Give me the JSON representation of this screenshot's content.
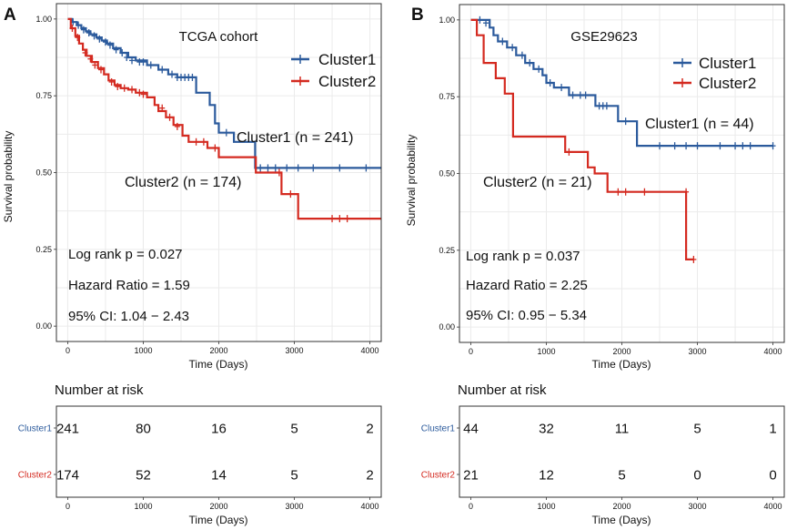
{
  "chart_data": [
    {
      "panel_label": "A",
      "type": "line",
      "subtype": "kaplan-meier",
      "title": "TCGA cohort",
      "xlabel": "Time (Days)",
      "ylabel": "Survival probability",
      "xlim": [
        -150,
        4150
      ],
      "ylim": [
        -0.05,
        1.05
      ],
      "x_ticks": [
        "0",
        "1000",
        "2000",
        "3000",
        "4000"
      ],
      "x_tick_values": [
        0,
        1000,
        2000,
        3000,
        4000
      ],
      "y_ticks": [
        "0.00",
        "0.25",
        "0.50",
        "0.75",
        "1.00"
      ],
      "y_tick_values": [
        0,
        0.25,
        0.5,
        0.75,
        1.0
      ],
      "legend": [
        "Cluster1",
        "Cluster2"
      ],
      "legend_position": "top-right",
      "series": [
        {
          "name": "Cluster1",
          "color": "#2b5a9c",
          "label": "Cluster1 (n = 241)",
          "steps": [
            [
              0,
              1.0
            ],
            [
              60,
              0.99
            ],
            [
              120,
              0.98
            ],
            [
              180,
              0.97
            ],
            [
              240,
              0.96
            ],
            [
              300,
              0.95
            ],
            [
              380,
              0.94
            ],
            [
              450,
              0.93
            ],
            [
              520,
              0.92
            ],
            [
              600,
              0.905
            ],
            [
              700,
              0.89
            ],
            [
              800,
              0.875
            ],
            [
              900,
              0.865
            ],
            [
              1050,
              0.85
            ],
            [
              1200,
              0.835
            ],
            [
              1330,
              0.82
            ],
            [
              1450,
              0.81
            ],
            [
              1700,
              0.76
            ],
            [
              1880,
              0.72
            ],
            [
              1950,
              0.66
            ],
            [
              2000,
              0.63
            ],
            [
              2200,
              0.6
            ],
            [
              2480,
              0.515
            ],
            [
              4150,
              0.515
            ]
          ],
          "censors": [
            [
              70,
              0.99
            ],
            [
              140,
              0.98
            ],
            [
              210,
              0.965
            ],
            [
              280,
              0.955
            ],
            [
              350,
              0.945
            ],
            [
              420,
              0.935
            ],
            [
              500,
              0.925
            ],
            [
              560,
              0.915
            ],
            [
              640,
              0.9
            ],
            [
              720,
              0.89
            ],
            [
              780,
              0.875
            ],
            [
              850,
              0.865
            ],
            [
              950,
              0.86
            ],
            [
              1000,
              0.86
            ],
            [
              1100,
              0.85
            ],
            [
              1250,
              0.835
            ],
            [
              1380,
              0.82
            ],
            [
              1450,
              0.81
            ],
            [
              1500,
              0.81
            ],
            [
              1550,
              0.81
            ],
            [
              1600,
              0.81
            ],
            [
              1650,
              0.81
            ],
            [
              2100,
              0.63
            ],
            [
              2550,
              0.515
            ],
            [
              2650,
              0.515
            ],
            [
              2750,
              0.515
            ],
            [
              2900,
              0.515
            ],
            [
              3050,
              0.515
            ],
            [
              3250,
              0.515
            ],
            [
              3600,
              0.515
            ],
            [
              3950,
              0.515
            ]
          ],
          "at_risk": [
            "241",
            "80",
            "16",
            "5",
            "2"
          ]
        },
        {
          "name": "Cluster2",
          "color": "#d42a20",
          "label": "Cluster2 (n = 174)",
          "steps": [
            [
              0,
              1.0
            ],
            [
              40,
              0.97
            ],
            [
              100,
              0.945
            ],
            [
              150,
              0.92
            ],
            [
              200,
              0.9
            ],
            [
              250,
              0.88
            ],
            [
              320,
              0.86
            ],
            [
              400,
              0.84
            ],
            [
              480,
              0.82
            ],
            [
              540,
              0.8
            ],
            [
              620,
              0.785
            ],
            [
              700,
              0.775
            ],
            [
              800,
              0.77
            ],
            [
              900,
              0.76
            ],
            [
              1050,
              0.745
            ],
            [
              1150,
              0.72
            ],
            [
              1200,
              0.7
            ],
            [
              1300,
              0.68
            ],
            [
              1400,
              0.655
            ],
            [
              1520,
              0.62
            ],
            [
              1600,
              0.6
            ],
            [
              1850,
              0.58
            ],
            [
              2000,
              0.55
            ],
            [
              2490,
              0.5
            ],
            [
              2830,
              0.43
            ],
            [
              3050,
              0.35
            ],
            [
              4150,
              0.35
            ]
          ],
          "censors": [
            [
              60,
              0.97
            ],
            [
              130,
              0.94
            ],
            [
              230,
              0.89
            ],
            [
              300,
              0.87
            ],
            [
              360,
              0.85
            ],
            [
              440,
              0.835
            ],
            [
              580,
              0.795
            ],
            [
              660,
              0.78
            ],
            [
              750,
              0.775
            ],
            [
              850,
              0.77
            ],
            [
              950,
              0.76
            ],
            [
              1000,
              0.755
            ],
            [
              1250,
              0.71
            ],
            [
              1350,
              0.68
            ],
            [
              1450,
              0.65
            ],
            [
              1700,
              0.6
            ],
            [
              1800,
              0.6
            ],
            [
              1950,
              0.58
            ],
            [
              2800,
              0.5
            ],
            [
              2950,
              0.43
            ],
            [
              3500,
              0.35
            ],
            [
              3600,
              0.35
            ],
            [
              3700,
              0.35
            ]
          ],
          "at_risk": [
            "174",
            "52",
            "14",
            "5",
            "2"
          ]
        }
      ],
      "annotations": [
        "Log rank p = 0.027",
        "Hazard Ratio = 1.59",
        "95% CI: 1.04 − 2.43"
      ],
      "risk_table": {
        "title": "Number at risk",
        "xlabel": "Time (Days)",
        "x_ticks": [
          "0",
          "1000",
          "2000",
          "3000",
          "4000"
        ],
        "x_tick_values": [
          0,
          1000,
          2000,
          3000,
          4000
        ],
        "rows": [
          "Cluster1",
          "Cluster2"
        ]
      }
    },
    {
      "panel_label": "B",
      "type": "line",
      "subtype": "kaplan-meier",
      "title": "GSE29623",
      "xlabel": "Time (Days)",
      "ylabel": "Survival probability",
      "xlim": [
        -150,
        4150
      ],
      "ylim": [
        -0.05,
        1.05
      ],
      "x_ticks": [
        "0",
        "1000",
        "2000",
        "3000",
        "4000"
      ],
      "x_tick_values": [
        0,
        1000,
        2000,
        3000,
        4000
      ],
      "y_ticks": [
        "0.00",
        "0.25",
        "0.50",
        "0.75",
        "1.00"
      ],
      "y_tick_values": [
        0,
        0.25,
        0.5,
        0.75,
        1.0
      ],
      "legend": [
        "Cluster1",
        "Cluster2"
      ],
      "legend_position": "top-right",
      "series": [
        {
          "name": "Cluster1",
          "color": "#2b5a9c",
          "label": "Cluster1 (n = 44)",
          "steps": [
            [
              0,
              1.0
            ],
            [
              250,
              0.975
            ],
            [
              300,
              0.95
            ],
            [
              360,
              0.93
            ],
            [
              480,
              0.91
            ],
            [
              600,
              0.885
            ],
            [
              720,
              0.86
            ],
            [
              830,
              0.84
            ],
            [
              950,
              0.82
            ],
            [
              1000,
              0.795
            ],
            [
              1100,
              0.78
            ],
            [
              1300,
              0.755
            ],
            [
              1650,
              0.72
            ],
            [
              1950,
              0.67
            ],
            [
              2200,
              0.59
            ],
            [
              4000,
              0.59
            ]
          ],
          "censors": [
            [
              120,
              1.0
            ],
            [
              200,
              0.99
            ],
            [
              420,
              0.93
            ],
            [
              550,
              0.91
            ],
            [
              680,
              0.885
            ],
            [
              780,
              0.86
            ],
            [
              900,
              0.84
            ],
            [
              1050,
              0.795
            ],
            [
              1200,
              0.78
            ],
            [
              1350,
              0.755
            ],
            [
              1450,
              0.755
            ],
            [
              1520,
              0.755
            ],
            [
              1700,
              0.72
            ],
            [
              1750,
              0.72
            ],
            [
              1800,
              0.72
            ],
            [
              2050,
              0.67
            ],
            [
              2500,
              0.59
            ],
            [
              2700,
              0.59
            ],
            [
              2850,
              0.59
            ],
            [
              3000,
              0.59
            ],
            [
              3300,
              0.59
            ],
            [
              3500,
              0.59
            ],
            [
              3600,
              0.59
            ],
            [
              3700,
              0.59
            ],
            [
              4000,
              0.59
            ]
          ],
          "at_risk": [
            "44",
            "32",
            "11",
            "5",
            "1"
          ]
        },
        {
          "name": "Cluster2",
          "color": "#d42a20",
          "label": "Cluster2 (n = 21)",
          "steps": [
            [
              0,
              1.0
            ],
            [
              80,
              0.95
            ],
            [
              170,
              0.86
            ],
            [
              330,
              0.81
            ],
            [
              450,
              0.76
            ],
            [
              560,
              0.62
            ],
            [
              1250,
              0.57
            ],
            [
              1550,
              0.52
            ],
            [
              1640,
              0.5
            ],
            [
              1810,
              0.44
            ],
            [
              2850,
              0.22
            ],
            [
              2950,
              0.22
            ]
          ],
          "censors": [
            [
              1300,
              0.57
            ],
            [
              1950,
              0.44
            ],
            [
              2050,
              0.44
            ],
            [
              2300,
              0.44
            ],
            [
              2850,
              0.44
            ],
            [
              2950,
              0.22
            ]
          ],
          "at_risk": [
            "21",
            "12",
            "5",
            "0",
            "0"
          ]
        }
      ],
      "annotations": [
        "Log rank p = 0.037",
        "Hazard Ratio = 2.25",
        "95% CI: 0.95 − 5.34"
      ],
      "risk_table": {
        "title": "Number at risk",
        "xlabel": "Time (Days)",
        "x_ticks": [
          "0",
          "1000",
          "2000",
          "3000",
          "4000"
        ],
        "x_tick_values": [
          0,
          1000,
          2000,
          3000,
          4000
        ],
        "rows": [
          "Cluster1",
          "Cluster2"
        ]
      }
    }
  ]
}
